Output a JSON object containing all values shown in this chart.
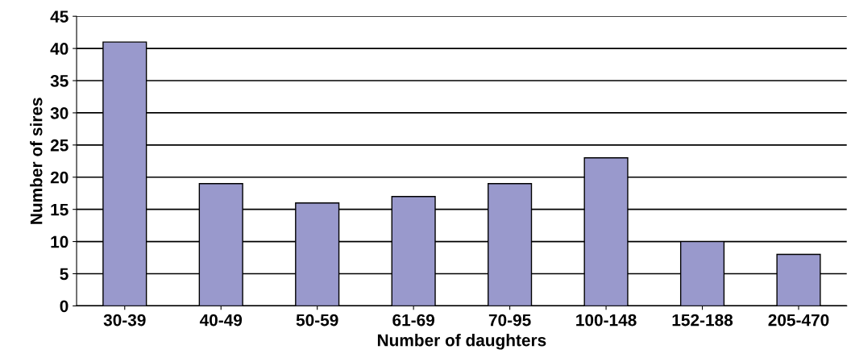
{
  "chart_data": {
    "type": "bar",
    "xlabel": "Number of daughters",
    "ylabel": "Number of sires",
    "categories": [
      "30-39",
      "40-49",
      "50-59",
      "61-69",
      "70-95",
      "100-148",
      "152-188",
      "205-470"
    ],
    "values": [
      41,
      19,
      16,
      17,
      19,
      23,
      10,
      8
    ],
    "color": "#9999cc",
    "ylim": [
      0,
      45
    ],
    "yticks": [
      0,
      5,
      10,
      15,
      20,
      25,
      30,
      35,
      40,
      45
    ],
    "grid": "y"
  }
}
